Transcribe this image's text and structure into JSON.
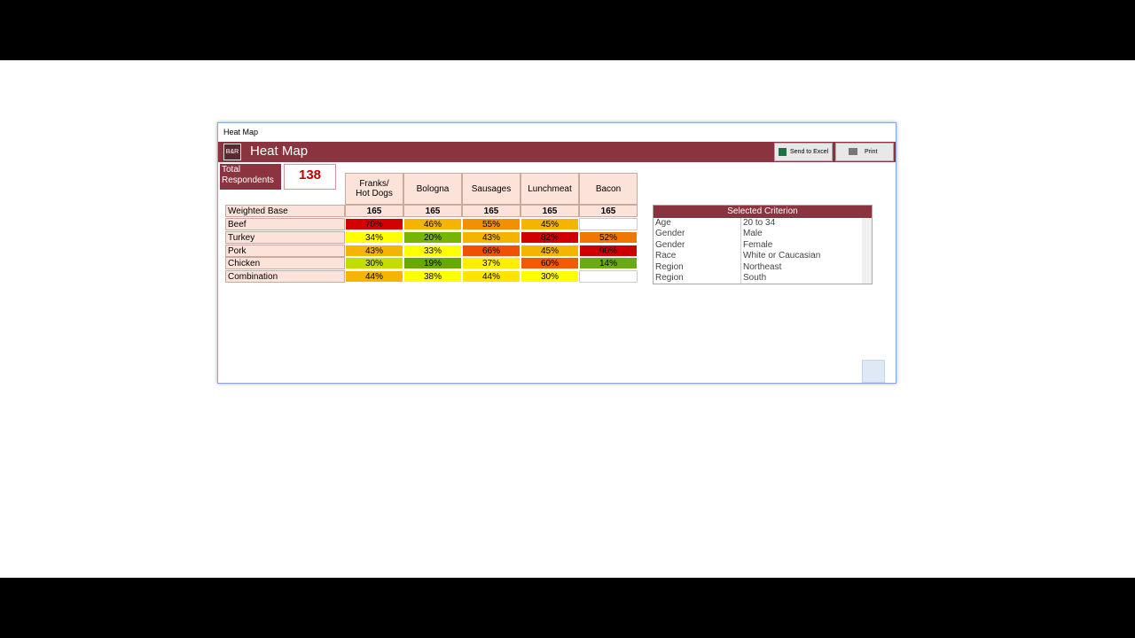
{
  "window": {
    "caption": "Heat Map",
    "title": "Heat Map",
    "buttons": [
      "Send to Excel",
      "Print"
    ]
  },
  "summary": {
    "label": "Total Respondents",
    "value": 138
  },
  "table": {
    "columns": [
      "Franks/\nHot Dogs",
      "Bologna",
      "Sausages",
      "Lunchmeat",
      "Bacon"
    ],
    "base_label": "Weighted Base",
    "base": [
      165,
      165,
      165,
      165,
      165
    ],
    "rows": [
      {
        "label": "Beef",
        "cells": [
          "70%",
          "46%",
          "55%",
          "45%",
          null
        ],
        "colors": [
          "#d40000",
          "#f5b400",
          "#f39000",
          "#f5b400",
          null
        ]
      },
      {
        "label": "Turkey",
        "cells": [
          "34%",
          "20%",
          "43%",
          "82%",
          "52%"
        ],
        "colors": [
          "#ffff00",
          "#78b400",
          "#f5b400",
          "#d00000",
          "#f07800"
        ]
      },
      {
        "label": "Pork",
        "cells": [
          "43%",
          "33%",
          "66%",
          "45%",
          "90%"
        ],
        "colors": [
          "#f5b400",
          "#ffff00",
          "#f05000",
          "#f5b400",
          "#cc0000"
        ]
      },
      {
        "label": "Chicken",
        "cells": [
          "30%",
          "19%",
          "37%",
          "60%",
          "14%"
        ],
        "colors": [
          "#c4dc00",
          "#68a800",
          "#ffee00",
          "#f05a00",
          "#6aac10"
        ]
      },
      {
        "label": "Combination",
        "cells": [
          "44%",
          "38%",
          "44%",
          "30%",
          null
        ],
        "colors": [
          "#f5b400",
          "#ffff00",
          "#ffe400",
          "#ffff00",
          null
        ]
      }
    ]
  },
  "criteria": {
    "title": "Selected Criterion",
    "rows": [
      [
        "Age",
        "20 to 34"
      ],
      [
        "Gender",
        "Male"
      ],
      [
        "Gender",
        "Female"
      ],
      [
        "Race",
        "White or Caucasian"
      ],
      [
        "Region",
        "Northeast"
      ],
      [
        "Region",
        "South"
      ]
    ]
  }
}
